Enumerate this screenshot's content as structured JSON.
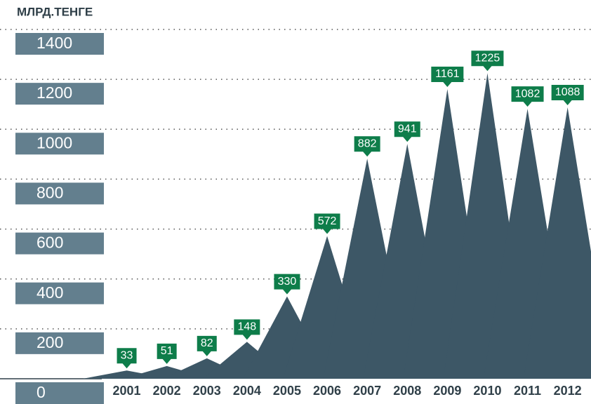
{
  "chart_data": {
    "type": "peak_area",
    "y_axis_label": "МЛРД.ТЕНГЕ",
    "categories": [
      "2001",
      "2002",
      "2003",
      "2004",
      "2005",
      "2006",
      "2007",
      "2008",
      "2009",
      "2010",
      "2011",
      "2012"
    ],
    "values": [
      33,
      51,
      82,
      148,
      330,
      572,
      882,
      941,
      1161,
      1225,
      1082,
      1088
    ],
    "color": "#3d5766",
    "label_color": "#0e7d4a",
    "tick_box_color": "#637f8e",
    "ylim": [
      0,
      1400
    ],
    "yticks": [
      0,
      200,
      400,
      600,
      800,
      1000,
      1200,
      1400
    ],
    "grid": true
  }
}
